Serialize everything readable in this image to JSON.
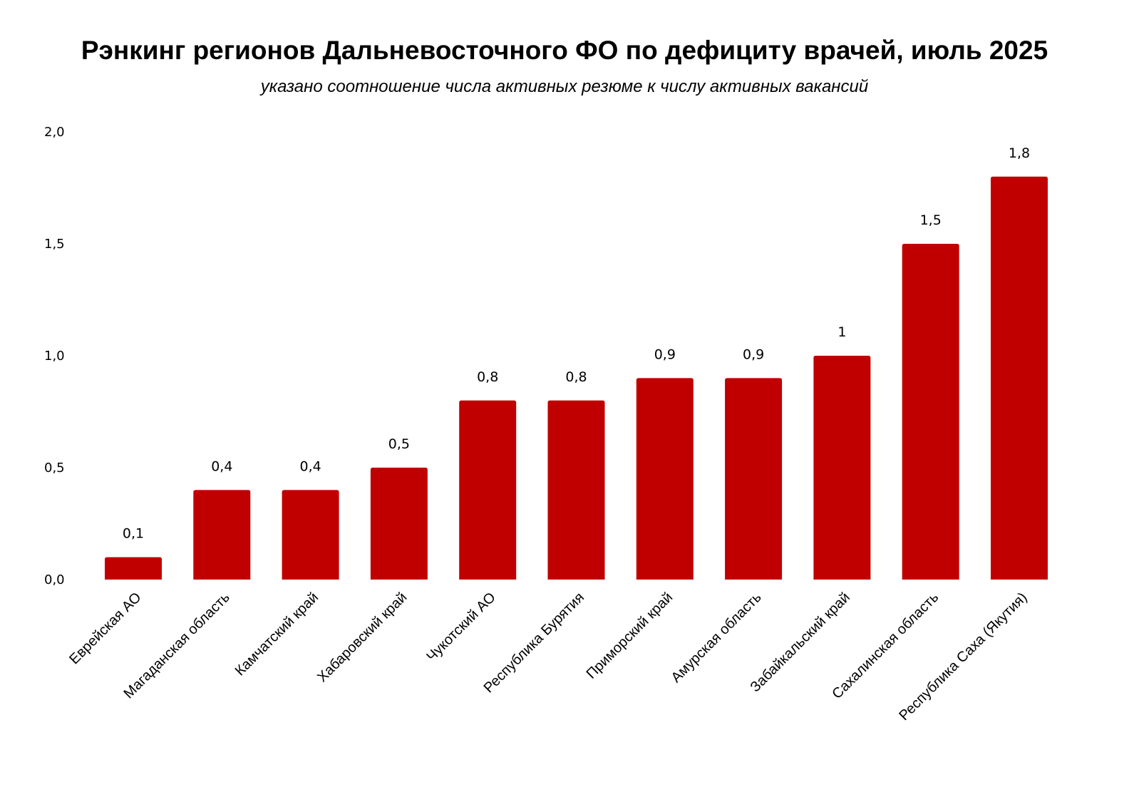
{
  "chart_data": {
    "type": "bar",
    "title": "Рэнкинг регионов Дальневосточного ФО по дефициту врачей, июль 2025",
    "subtitle": "указано соотношение числа активных резюме  к числу активных вакансий",
    "xlabel": "",
    "ylabel": "",
    "ylim": [
      0,
      2
    ],
    "yticks": [
      "0,0",
      "0,5",
      "1,0",
      "1,5",
      "2,0"
    ],
    "grid": false,
    "bar_color": "#C00000",
    "categories": [
      "Еврейская АО",
      "Магаданская область",
      "Камчатский край",
      "Хабаровский край",
      "Чукотский АО",
      "Республика Бурятия",
      "Приморский край",
      "Амурская область",
      "Забайкальский край",
      "Сахалинская область",
      "Республика Саха (Якутия)"
    ],
    "values": [
      0.1,
      0.4,
      0.4,
      0.5,
      0.8,
      0.8,
      0.9,
      0.9,
      1,
      1.5,
      1.8
    ],
    "data_labels": [
      "0,1",
      "0,4",
      "0,4",
      "0,5",
      "0,8",
      "0,8",
      "0,9",
      "0,9",
      "1",
      "1,5",
      "1,8"
    ]
  }
}
